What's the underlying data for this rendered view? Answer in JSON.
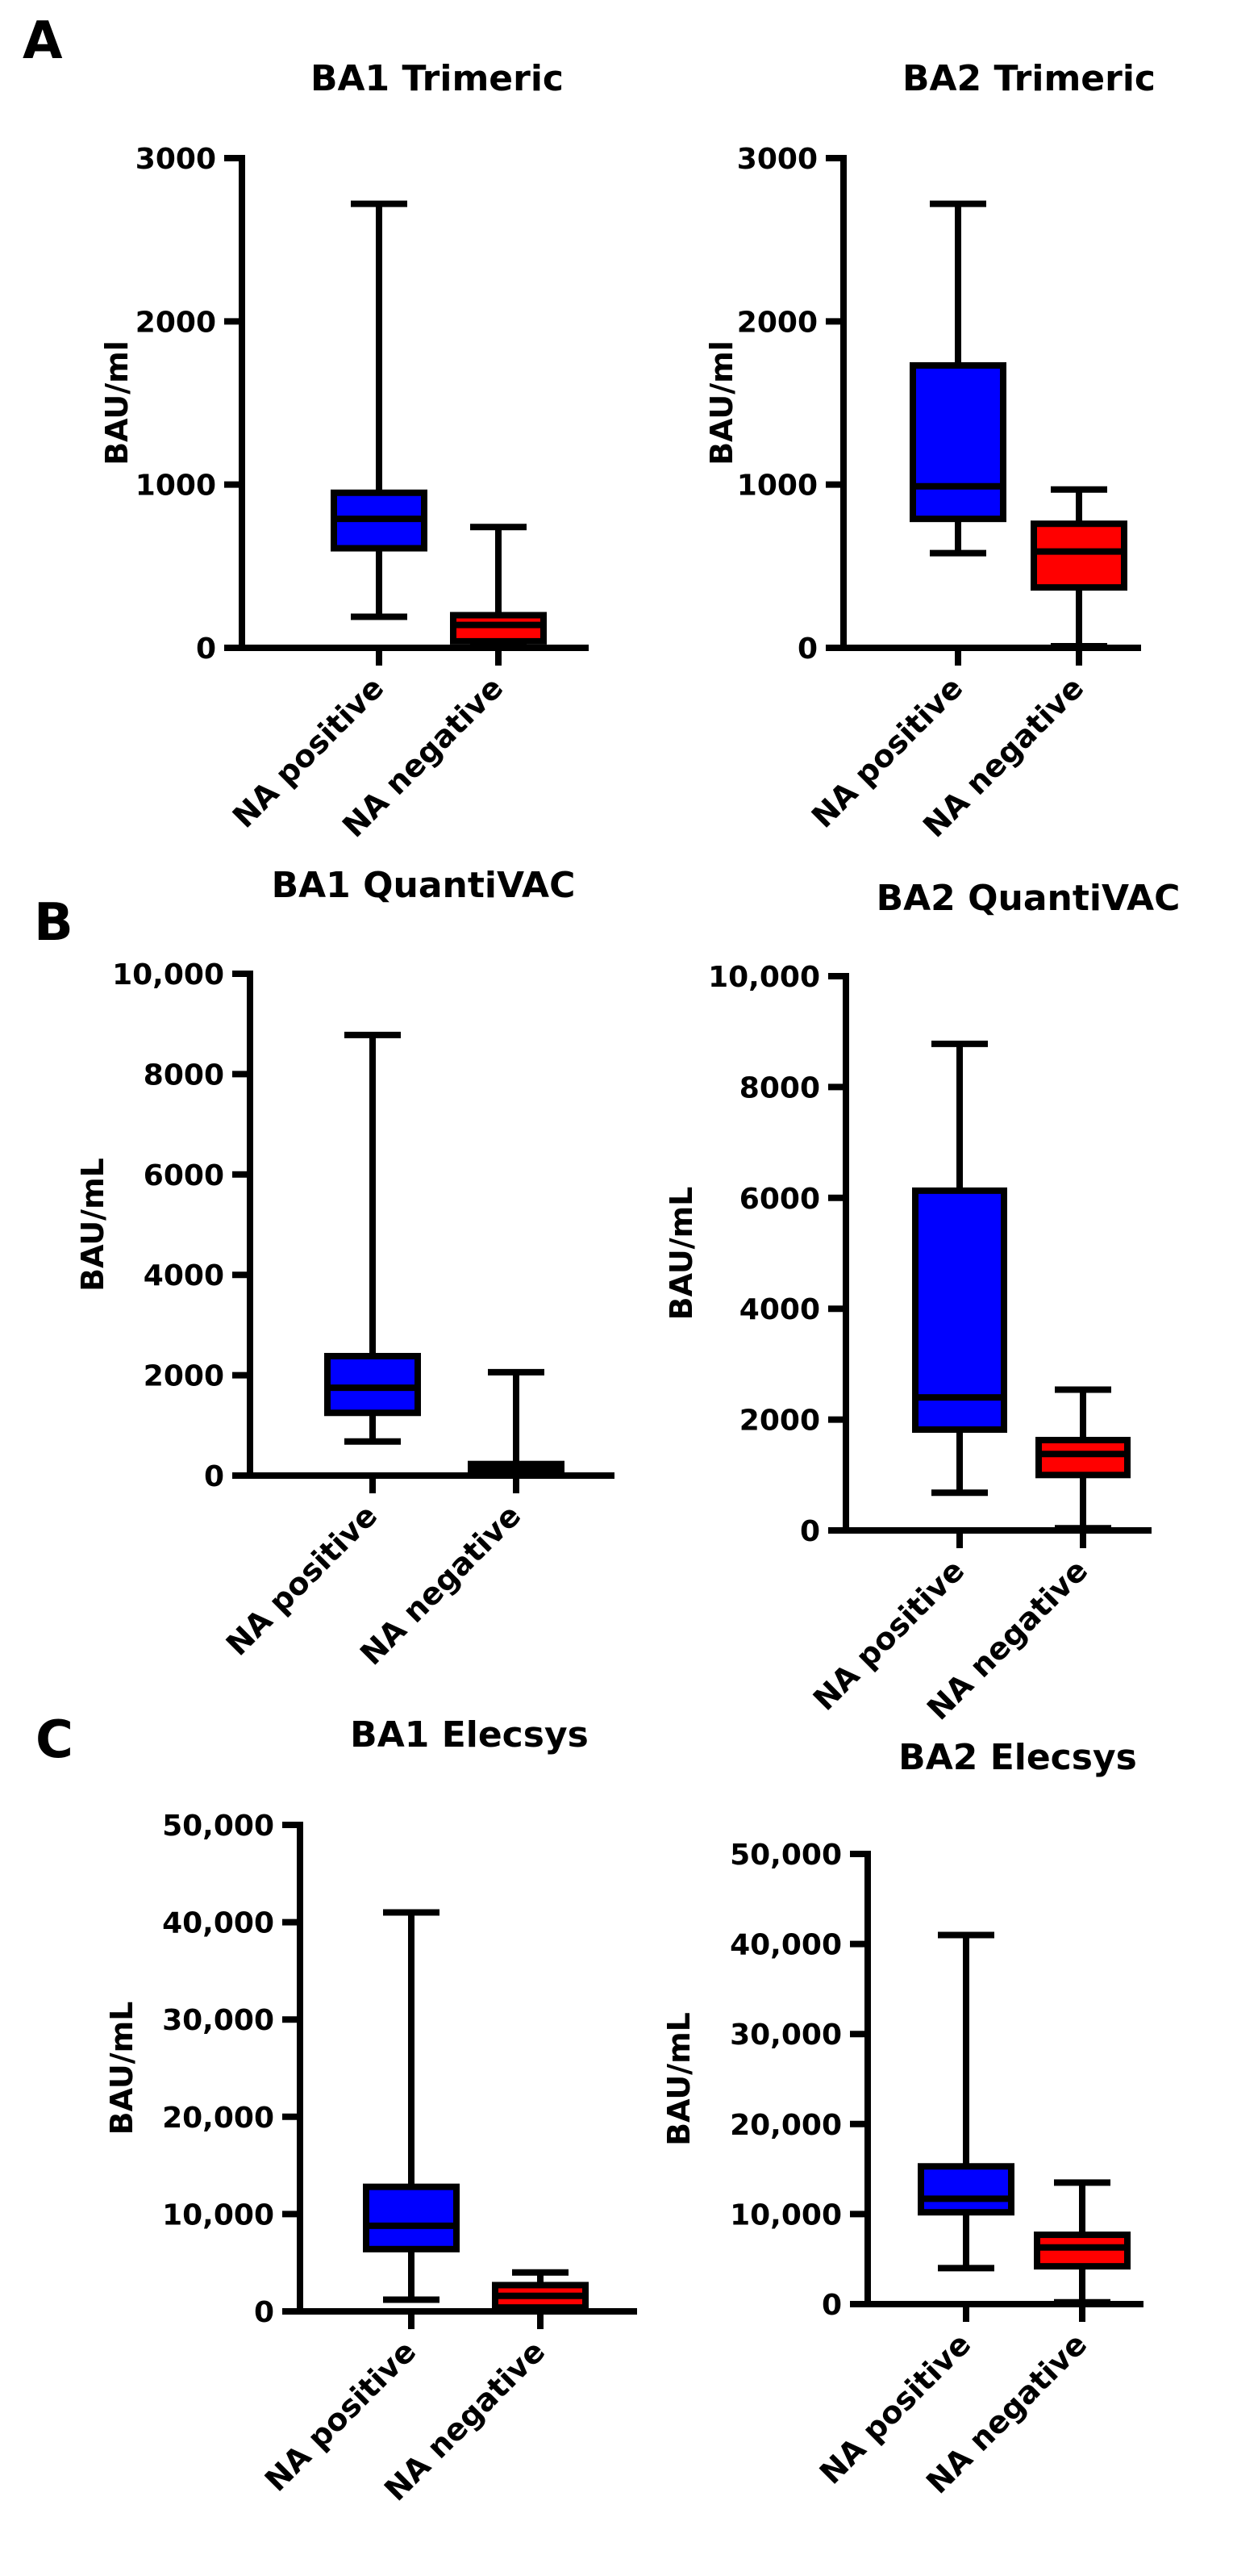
{
  "panel_letters": [
    "A",
    "B",
    "C"
  ],
  "chart_data": [
    {
      "type": "box",
      "title": "BA1 Trimeric",
      "ylabel": "BAU/ml",
      "ylim": [
        0,
        3000
      ],
      "yticks": [
        0,
        1000,
        2000,
        3000
      ],
      "ytick_labels": [
        "0",
        "1000",
        "2000",
        "3000"
      ],
      "categories": [
        "NA positive",
        "NA negative"
      ],
      "boxes": [
        {
          "min": 190,
          "q1": 610,
          "median": 790,
          "q3": 950,
          "max": 2720,
          "color": "#0000ff"
        },
        {
          "min": 20,
          "q1": 40,
          "median": 140,
          "q3": 200,
          "max": 740,
          "color": "#ff0000"
        }
      ]
    },
    {
      "type": "box",
      "title": "BA2 Trimeric",
      "ylabel": "BAU/ml",
      "ylim": [
        0,
        3000
      ],
      "yticks": [
        0,
        1000,
        2000,
        3000
      ],
      "ytick_labels": [
        "0",
        "1000",
        "2000",
        "3000"
      ],
      "categories": [
        "NA positive",
        "NA negative"
      ],
      "boxes": [
        {
          "min": 580,
          "q1": 790,
          "median": 990,
          "q3": 1730,
          "max": 2720,
          "color": "#0000ff"
        },
        {
          "min": 10,
          "q1": 370,
          "median": 590,
          "q3": 760,
          "max": 970,
          "color": "#ff0000"
        }
      ]
    },
    {
      "type": "box",
      "title": "BA1 QuantiVAC",
      "ylabel": "BAU/mL",
      "ylim": [
        0,
        10000
      ],
      "yticks": [
        0,
        2000,
        4000,
        6000,
        8000,
        10000
      ],
      "ytick_labels": [
        "0",
        "2000",
        "4000",
        "6000",
        "8000",
        "10,000"
      ],
      "categories": [
        "NA positive",
        "NA negative"
      ],
      "boxes": [
        {
          "min": 680,
          "q1": 1250,
          "median": 1750,
          "q3": 2380,
          "max": 8780,
          "color": "#0000ff"
        },
        {
          "min": 20,
          "q1": 60,
          "median": 140,
          "q3": 230,
          "max": 2060,
          "color": "#ff0000"
        }
      ]
    },
    {
      "type": "box",
      "title": "BA2 QuantiVAC",
      "ylabel": "BAU/mL",
      "ylim": [
        0,
        10000
      ],
      "yticks": [
        0,
        2000,
        4000,
        6000,
        8000,
        10000
      ],
      "ytick_labels": [
        "0",
        "2000",
        "4000",
        "6000",
        "8000",
        "10,000"
      ],
      "categories": [
        "NA positive",
        "NA negative"
      ],
      "boxes": [
        {
          "min": 680,
          "q1": 1820,
          "median": 2400,
          "q3": 6130,
          "max": 8780,
          "color": "#0000ff"
        },
        {
          "min": 40,
          "q1": 1000,
          "median": 1380,
          "q3": 1630,
          "max": 2540,
          "color": "#ff0000"
        }
      ]
    },
    {
      "type": "box",
      "title": "BA1 Elecsys",
      "ylabel": "BAU/mL",
      "ylim": [
        0,
        50000
      ],
      "yticks": [
        0,
        10000,
        20000,
        30000,
        40000,
        50000
      ],
      "ytick_labels": [
        "0",
        "10,000",
        "20,000",
        "30,000",
        "40,000",
        "50,000"
      ],
      "categories": [
        "NA positive",
        "NA negative"
      ],
      "boxes": [
        {
          "min": 1200,
          "q1": 6400,
          "median": 8800,
          "q3": 12800,
          "max": 41000,
          "color": "#0000ff"
        },
        {
          "min": 100,
          "q1": 400,
          "median": 1600,
          "q3": 2700,
          "max": 4000,
          "color": "#ff0000"
        }
      ]
    },
    {
      "type": "box",
      "title": "BA2 Elecsys",
      "ylabel": "BAU/mL",
      "ylim": [
        0,
        50000
      ],
      "yticks": [
        0,
        10000,
        20000,
        30000,
        40000,
        50000
      ],
      "ytick_labels": [
        "0",
        "10,000",
        "20,000",
        "30,000",
        "40,000",
        "50,000"
      ],
      "categories": [
        "NA positive",
        "NA negative"
      ],
      "boxes": [
        {
          "min": 4000,
          "q1": 10200,
          "median": 11700,
          "q3": 15300,
          "max": 41000,
          "color": "#0000ff"
        },
        {
          "min": 200,
          "q1": 4200,
          "median": 6300,
          "q3": 7700,
          "max": 13500,
          "color": "#ff0000"
        }
      ]
    }
  ]
}
